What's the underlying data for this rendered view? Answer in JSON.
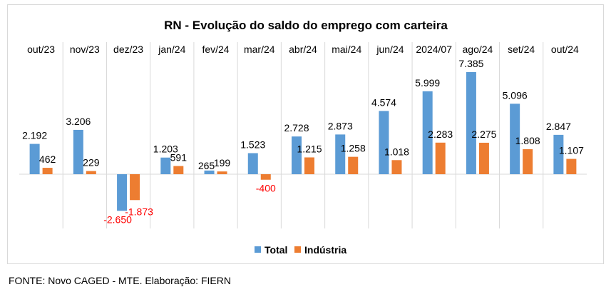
{
  "chart_data": {
    "type": "bar",
    "title": "RN - Evolução do saldo do emprego com carteira",
    "categories": [
      "out/23",
      "nov/23",
      "dez/23",
      "jan/24",
      "fev/24",
      "mar/24",
      "abr/24",
      "mai/24",
      "jun/24",
      "2024/07",
      "ago/24",
      "set/24",
      "out/24"
    ],
    "series": [
      {
        "name": "Total",
        "values": [
          2192,
          3206,
          -2650,
          1203,
          265,
          1523,
          2728,
          2873,
          4574,
          5999,
          7385,
          5096,
          2847
        ],
        "labels": [
          "2.192",
          "3.206",
          "-2.650",
          "1.203",
          "265",
          "1.523",
          "2.728",
          "2.873",
          "4.574",
          "5.999",
          "7.385",
          "5.096",
          "2.847"
        ],
        "color": "#5B9BD5"
      },
      {
        "name": "Indústria",
        "values": [
          462,
          229,
          -1873,
          591,
          199,
          -400,
          1215,
          1258,
          1018,
          2283,
          2275,
          1808,
          1107
        ],
        "labels": [
          "462",
          "229",
          "-1.873",
          "591",
          "199",
          "-400",
          "1.215",
          "1.258",
          "1.018",
          "2.283",
          "2.275",
          "1.808",
          "1.107"
        ],
        "color": "#ED7D31"
      }
    ],
    "negative_label_color": "#FF0000",
    "gridlines": "vertical category separators",
    "legend_position": "bottom"
  },
  "footer": {
    "source": "FONTE: Novo CAGED - MTE. Elaboração: FIERN"
  }
}
